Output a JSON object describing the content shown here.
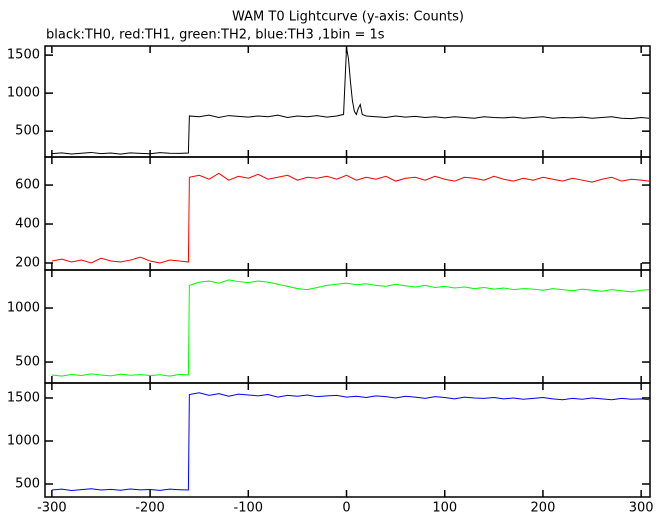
{
  "header": {
    "title": "WAM T0 Lightcurve (y-axis: Counts)",
    "subtitle": "black:TH0, red:TH1, green:TH2, blue:TH3 ,1bin = 1s"
  },
  "chart_data": [
    {
      "type": "line",
      "xlim": [
        -307,
        309
      ],
      "xticks": [
        -300,
        -200,
        -100,
        0,
        100,
        200,
        300
      ],
      "ylim": [
        160,
        1620
      ],
      "yticks": [
        500,
        1000,
        1500
      ],
      "x": [
        -300,
        -290,
        -280,
        -270,
        -260,
        -250,
        -240,
        -230,
        -220,
        -210,
        -200,
        -190,
        -180,
        -170,
        -161,
        -160,
        -150,
        -140,
        -130,
        -120,
        -110,
        -100,
        -90,
        -80,
        -70,
        -60,
        -50,
        -40,
        -30,
        -20,
        -10,
        -3,
        0,
        2,
        4,
        6,
        8,
        10,
        12,
        14,
        16,
        20,
        30,
        40,
        50,
        60,
        70,
        80,
        90,
        100,
        110,
        120,
        130,
        140,
        150,
        160,
        170,
        180,
        190,
        200,
        210,
        220,
        230,
        240,
        250,
        260,
        270,
        280,
        290,
        300,
        308
      ],
      "series": [
        {
          "name": "TH0",
          "color": "#000000",
          "values": [
            205,
            215,
            200,
            210,
            220,
            205,
            212,
            198,
            215,
            208,
            203,
            218,
            210,
            207,
            212,
            700,
            690,
            710,
            680,
            705,
            695,
            685,
            700,
            690,
            710,
            680,
            700,
            690,
            705,
            685,
            700,
            720,
            1600,
            1450,
            1150,
            900,
            760,
            720,
            800,
            850,
            720,
            700,
            690,
            680,
            700,
            685,
            695,
            680,
            690,
            675,
            690,
            680,
            670,
            690,
            680,
            675,
            685,
            670,
            680,
            690,
            670,
            680,
            675,
            685,
            670,
            680,
            690,
            670,
            665,
            680,
            670
          ]
        }
      ]
    },
    {
      "type": "line",
      "xlim": [
        -307,
        309
      ],
      "xticks": [
        -300,
        -200,
        -100,
        0,
        100,
        200,
        300
      ],
      "ylim": [
        164,
        744
      ],
      "yticks": [
        200,
        400,
        600
      ],
      "x": [
        -300,
        -290,
        -280,
        -270,
        -260,
        -250,
        -240,
        -230,
        -220,
        -210,
        -200,
        -190,
        -180,
        -170,
        -161,
        -160,
        -150,
        -140,
        -130,
        -120,
        -110,
        -100,
        -90,
        -80,
        -70,
        -60,
        -50,
        -40,
        -30,
        -20,
        -10,
        0,
        10,
        20,
        30,
        40,
        50,
        60,
        70,
        80,
        90,
        100,
        110,
        120,
        130,
        140,
        150,
        160,
        170,
        180,
        190,
        200,
        210,
        220,
        230,
        240,
        250,
        260,
        270,
        280,
        290,
        300,
        308
      ],
      "series": [
        {
          "name": "TH1",
          "color": "#ff0000",
          "values": [
            210,
            220,
            205,
            215,
            200,
            225,
            210,
            205,
            215,
            230,
            210,
            200,
            215,
            210,
            205,
            640,
            650,
            630,
            660,
            625,
            645,
            635,
            655,
            630,
            640,
            650,
            625,
            640,
            635,
            645,
            630,
            650,
            625,
            640,
            630,
            645,
            620,
            635,
            640,
            625,
            645,
            630,
            620,
            640,
            635,
            625,
            645,
            630,
            620,
            635,
            625,
            640,
            630,
            620,
            635,
            625,
            615,
            630,
            640,
            620,
            630,
            625,
            620
          ]
        }
      ]
    },
    {
      "type": "line",
      "xlim": [
        -307,
        309
      ],
      "xticks": [
        -300,
        -200,
        -100,
        0,
        100,
        200,
        300
      ],
      "ylim": [
        306,
        1352
      ],
      "yticks": [
        500,
        1000
      ],
      "x": [
        -300,
        -290,
        -280,
        -270,
        -260,
        -250,
        -240,
        -230,
        -220,
        -210,
        -200,
        -190,
        -180,
        -170,
        -161,
        -160,
        -150,
        -140,
        -130,
        -120,
        -110,
        -100,
        -90,
        -80,
        -70,
        -60,
        -50,
        -40,
        -30,
        -20,
        -10,
        0,
        10,
        20,
        30,
        40,
        50,
        60,
        70,
        80,
        90,
        100,
        110,
        120,
        130,
        140,
        150,
        160,
        170,
        180,
        190,
        200,
        210,
        220,
        230,
        240,
        250,
        260,
        270,
        280,
        290,
        300,
        308
      ],
      "series": [
        {
          "name": "TH2",
          "color": "#00ff00",
          "values": [
            380,
            370,
            385,
            375,
            390,
            380,
            372,
            388,
            378,
            384,
            376,
            382,
            370,
            386,
            380,
            1210,
            1240,
            1250,
            1230,
            1260,
            1245,
            1235,
            1250,
            1240,
            1220,
            1200,
            1180,
            1170,
            1190,
            1210,
            1220,
            1230,
            1215,
            1225,
            1210,
            1200,
            1220,
            1205,
            1195,
            1210,
            1190,
            1200,
            1185,
            1195,
            1180,
            1190,
            1175,
            1185,
            1170,
            1180,
            1175,
            1165,
            1180,
            1170,
            1160,
            1175,
            1165,
            1155,
            1170,
            1160,
            1150,
            1165,
            1170
          ]
        }
      ]
    },
    {
      "type": "line",
      "xlim": [
        -307,
        309
      ],
      "xticks": [
        -300,
        -200,
        -100,
        0,
        100,
        200,
        300
      ],
      "xtick_labels": true,
      "ylim": [
        349,
        1674
      ],
      "yticks": [
        500,
        1000,
        1500
      ],
      "x": [
        -300,
        -290,
        -280,
        -270,
        -260,
        -250,
        -240,
        -230,
        -220,
        -210,
        -200,
        -190,
        -180,
        -170,
        -161,
        -160,
        -150,
        -140,
        -130,
        -120,
        -110,
        -100,
        -90,
        -80,
        -70,
        -60,
        -50,
        -40,
        -30,
        -20,
        -10,
        0,
        10,
        20,
        30,
        40,
        50,
        60,
        70,
        80,
        90,
        100,
        110,
        120,
        130,
        140,
        150,
        160,
        170,
        180,
        190,
        200,
        210,
        220,
        230,
        240,
        250,
        260,
        270,
        280,
        290,
        300,
        308
      ],
      "series": [
        {
          "name": "TH3",
          "color": "#0000ff",
          "values": [
            430,
            440,
            425,
            435,
            445,
            430,
            438,
            428,
            442,
            432,
            436,
            426,
            440,
            434,
            430,
            1540,
            1560,
            1530,
            1550,
            1520,
            1545,
            1535,
            1525,
            1540,
            1510,
            1530,
            1520,
            1535,
            1515,
            1525,
            1530,
            1510,
            1520,
            1505,
            1525,
            1515,
            1500,
            1520,
            1510,
            1495,
            1515,
            1505,
            1490,
            1510,
            1500,
            1495,
            1505,
            1490,
            1500,
            1485,
            1495,
            1505,
            1490,
            1480,
            1495,
            1485,
            1500,
            1490,
            1480,
            1495,
            1485,
            1490,
            1480
          ]
        }
      ]
    }
  ]
}
